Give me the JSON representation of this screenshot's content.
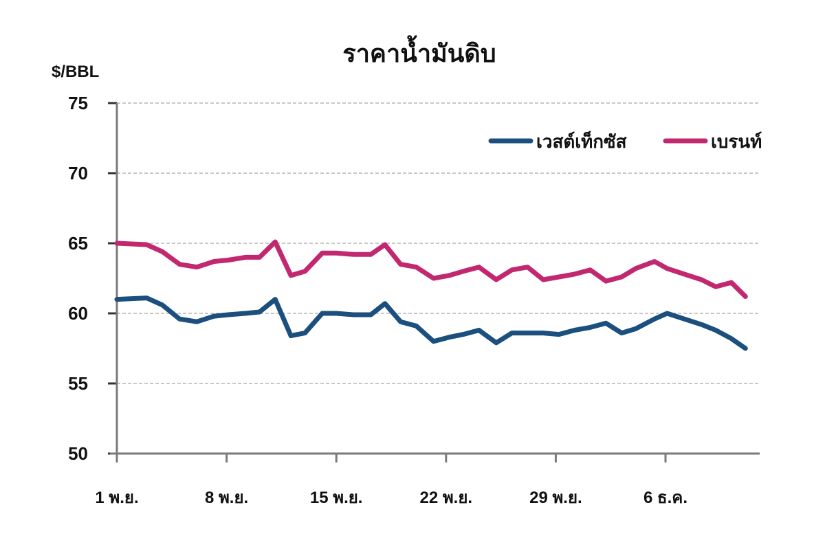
{
  "chart_data": {
    "type": "line",
    "title": "ราคาน้ำมันดิบ",
    "ylabel": "$/BBL",
    "xlabel": "",
    "ylim": [
      50,
      75
    ],
    "yticks": [
      50,
      55,
      60,
      65,
      70,
      75
    ],
    "grid": true,
    "legend_position": "top-right",
    "xtick_labels": [
      {
        "label": "1 พ.ย.",
        "day": 1
      },
      {
        "label": "8 พ.ย.",
        "day": 8
      },
      {
        "label": "15 พ.ย.",
        "day": 15
      },
      {
        "label": "22 พ.ย.",
        "day": 22
      },
      {
        "label": "29 พ.ย.",
        "day": 29
      },
      {
        "label": "6 ธ.ค.",
        "day": 36
      }
    ],
    "x": [
      1,
      2.9,
      3.9,
      5,
      6.1,
      7.2,
      8.1,
      9.2,
      10.1,
      11.1,
      12.1,
      13,
      14.1,
      15,
      16.1,
      17.2,
      18.1,
      19.1,
      20.1,
      21.2,
      22.2,
      23.1,
      24.1,
      25.2,
      26.2,
      27.2,
      28.2,
      29.2,
      30.2,
      31.2,
      32.2,
      33.2,
      34.1,
      35.3,
      36.1,
      37.2,
      38.3,
      39.2,
      40.2,
      41.1
    ],
    "series": [
      {
        "name": "เวสต์เท็กซัส",
        "color": "#1b4f7e",
        "values": [
          61.0,
          61.1,
          60.6,
          59.6,
          59.4,
          59.8,
          59.9,
          60.0,
          60.1,
          61.0,
          58.4,
          58.6,
          60.0,
          60.0,
          59.9,
          59.9,
          60.7,
          59.4,
          59.1,
          58.0,
          58.3,
          58.5,
          58.8,
          57.9,
          58.6,
          58.6,
          58.6,
          58.5,
          58.8,
          59.0,
          59.3,
          58.6,
          58.9,
          59.6,
          60.0,
          59.6,
          59.2,
          58.8,
          58.2,
          57.5
        ],
        "values_note": "series aligned to shared x (day of Nov; 31+ = Dec)"
      },
      {
        "name": "เบรนท์",
        "color": "#c2286f",
        "values": [
          65.0,
          64.9,
          64.4,
          63.5,
          63.3,
          63.7,
          63.8,
          64.0,
          64.0,
          65.1,
          62.7,
          63.0,
          64.3,
          64.3,
          64.2,
          64.2,
          64.9,
          63.5,
          63.3,
          62.5,
          62.7,
          63.0,
          63.3,
          62.4,
          63.1,
          63.3,
          62.4,
          62.6,
          62.8,
          63.1,
          62.3,
          62.6,
          63.2,
          63.7,
          63.2,
          62.8,
          62.4,
          61.9,
          62.2,
          61.2
        ]
      }
    ]
  }
}
